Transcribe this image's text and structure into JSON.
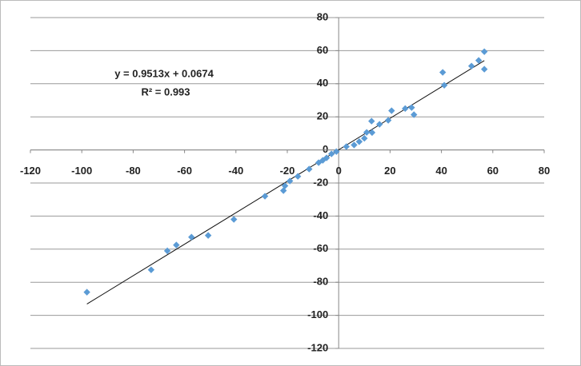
{
  "chart_data": {
    "type": "scatter",
    "series": [
      {
        "color": "#5b9bd5",
        "x": [
          -98,
          -73,
          -66.7,
          -63.2,
          -57.3,
          -50.8,
          -40.8,
          -28.7,
          -21.5,
          -20.9,
          -19,
          -15.9,
          -11.5,
          -7.8,
          -6.2,
          -4.7,
          -2.8,
          -0.9,
          3,
          6,
          8,
          10,
          10.9,
          12.8,
          13,
          15.9,
          19.3,
          20.6,
          25.9,
          28.4,
          29.3,
          40.5,
          41.1,
          51.7,
          54.5,
          56.7,
          56.7
        ],
        "values": [
          -86,
          -72.5,
          -61,
          -57.5,
          -52.7,
          -51.7,
          -42,
          -28,
          -24.6,
          -21.7,
          -18.8,
          -16,
          -11.6,
          -7.7,
          -6.3,
          -4.8,
          -2.4,
          -1,
          2,
          3,
          5,
          7,
          10.6,
          17.4,
          10.5,
          15.5,
          17.9,
          23.7,
          25,
          25.6,
          21.3,
          46.9,
          39.1,
          50.7,
          54.1,
          59.4,
          48.8
        ]
      }
    ],
    "trendline": {
      "slope": 0.9513,
      "intercept": 0.0674,
      "equation": "y = 0.9513x + 0.0674",
      "r2": "R² = 0.993"
    },
    "xlim": [
      -120,
      80
    ],
    "xticks": [
      -120,
      -100,
      -80,
      -60,
      -40,
      -20,
      0,
      20,
      40,
      60,
      80
    ],
    "ylim": [
      -120,
      80
    ],
    "yticks": [
      -120,
      -100,
      -80,
      -60,
      -40,
      -20,
      0,
      20,
      40,
      60,
      80
    ],
    "grid": true
  }
}
